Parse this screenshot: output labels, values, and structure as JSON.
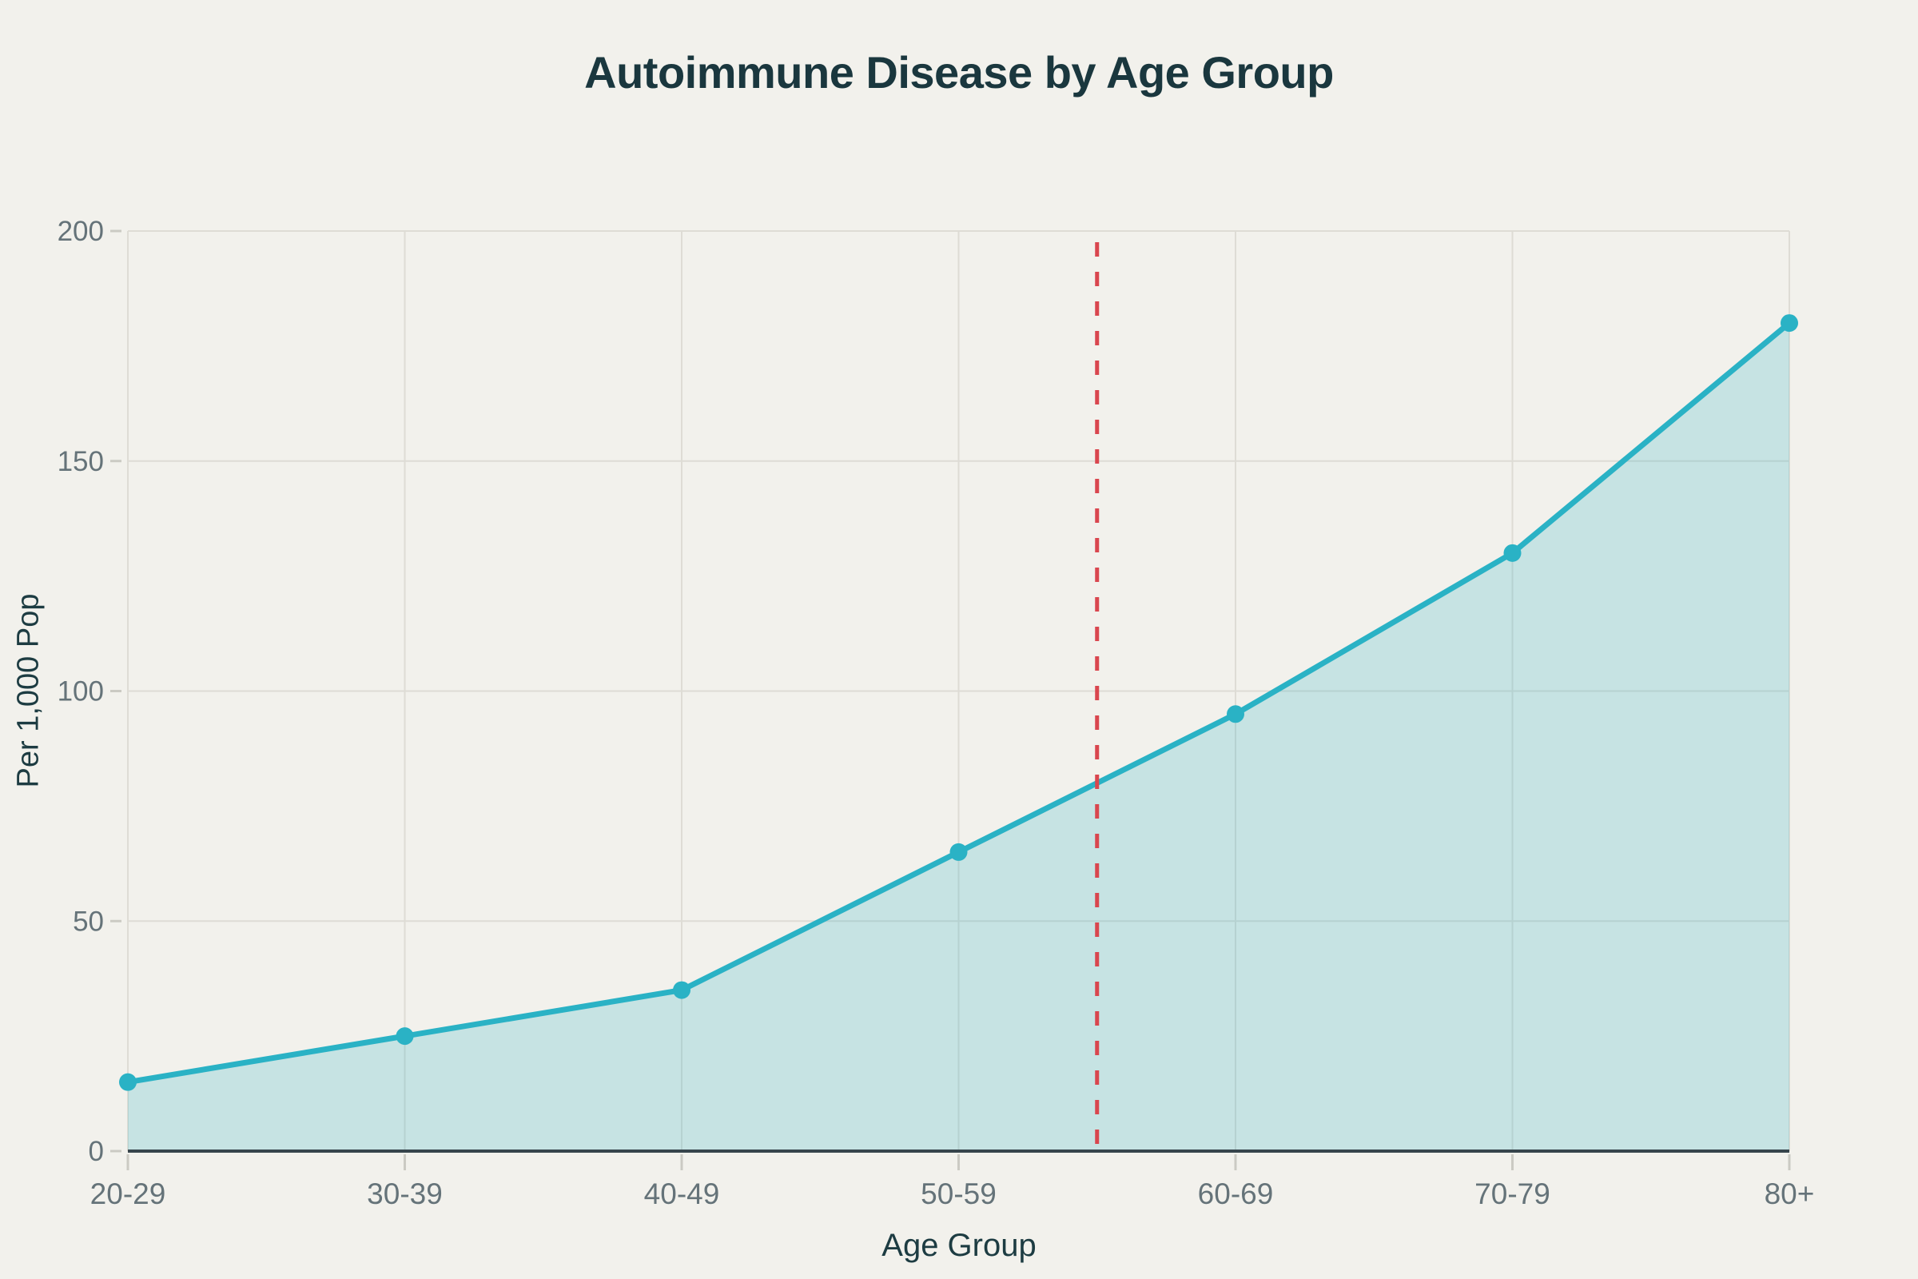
{
  "page": {
    "background": "#f2f1ec"
  },
  "chart_data": {
    "type": "area",
    "title": "Autoimmune Disease by Age Group",
    "xlabel": "Age Group",
    "ylabel": "Per 1,000 Pop",
    "categories": [
      "20-29",
      "30-39",
      "40-49",
      "50-59",
      "60-69",
      "70-79",
      "80+"
    ],
    "values": [
      15,
      25,
      35,
      65,
      95,
      130,
      180
    ],
    "ylim": [
      0,
      200
    ],
    "yticks": [
      0,
      50,
      100,
      150,
      200
    ],
    "grid": true,
    "legend_position": "none",
    "line_color": "#2ab2c5",
    "area_fill": "rgba(42, 178, 197, 0.22)",
    "marker": "circle",
    "annotations": [
      {
        "type": "vline",
        "between": [
          "50-59",
          "60-69"
        ],
        "x_index": 3.5,
        "style": "dashed",
        "color": "#d9464e"
      }
    ],
    "text_colors": {
      "title": "#1a373e",
      "axis_title": "#1d3c42",
      "tick_label": "#657379"
    },
    "axis_line_color": "#37454c",
    "grid_color": "#dedcd5",
    "tick_mark_color": "#cbcac3"
  }
}
